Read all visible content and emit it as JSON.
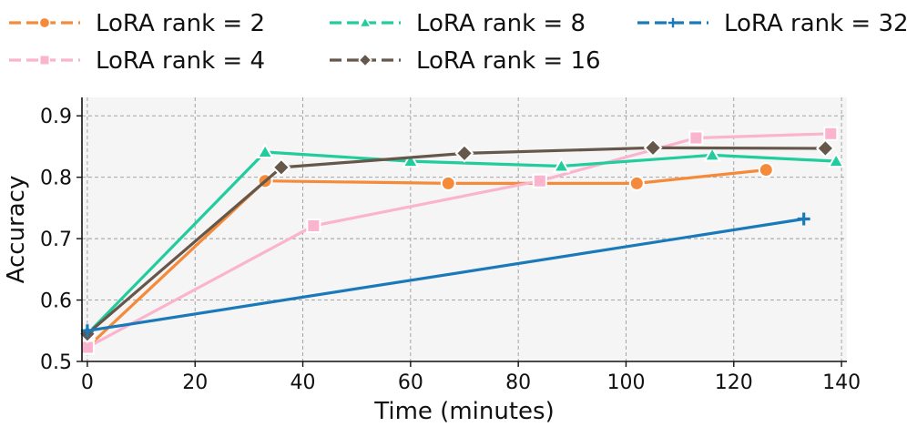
{
  "chart_data": {
    "type": "line",
    "title": "",
    "xlabel": "Time (minutes)",
    "ylabel": "Accuracy",
    "xlim": [
      -1,
      141
    ],
    "ylim": [
      0.5,
      0.93
    ],
    "xticks": [
      0,
      20,
      40,
      60,
      80,
      100,
      120,
      140
    ],
    "yticks": [
      0.5,
      0.6,
      0.7,
      0.8,
      0.9
    ],
    "xtick_labels": [
      "0",
      "20",
      "40",
      "60",
      "80",
      "100",
      "120",
      "140"
    ],
    "ytick_labels": [
      "0.5",
      "0.6",
      "0.7",
      "0.8",
      "0.9"
    ],
    "grid": true,
    "legend_position": "top",
    "series": [
      {
        "name": "LoRA rank = 2",
        "color": "#F58A3B",
        "marker": "circle",
        "x": [
          0,
          33,
          67,
          102,
          126
        ],
        "y": [
          0.523,
          0.794,
          0.79,
          0.79,
          0.812
        ]
      },
      {
        "name": "LoRA rank = 4",
        "color": "#FBB4CE",
        "marker": "square",
        "x": [
          0,
          42,
          84,
          113,
          138
        ],
        "y": [
          0.523,
          0.721,
          0.794,
          0.864,
          0.871
        ]
      },
      {
        "name": "LoRA rank = 8",
        "color": "#21CC9D",
        "marker": "triangle",
        "x": [
          0,
          33,
          60,
          88,
          116,
          139
        ],
        "y": [
          0.545,
          0.841,
          0.826,
          0.818,
          0.836,
          0.826
        ]
      },
      {
        "name": "LoRA rank = 16",
        "color": "#65574A",
        "marker": "diamond",
        "x": [
          0,
          36,
          70,
          105,
          137
        ],
        "y": [
          0.545,
          0.816,
          0.839,
          0.848,
          0.847
        ]
      },
      {
        "name": "LoRA rank = 32",
        "color": "#1A7AB9",
        "marker": "plus",
        "x": [
          0,
          133
        ],
        "y": [
          0.55,
          0.732
        ]
      }
    ]
  }
}
